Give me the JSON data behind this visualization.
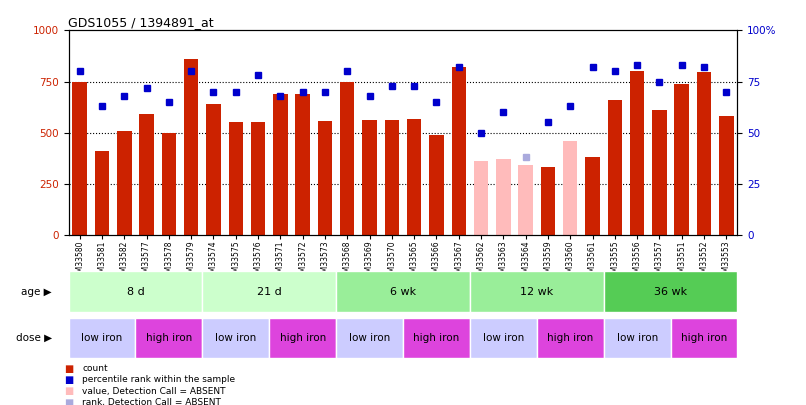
{
  "title": "GDS1055 / 1394891_at",
  "samples": [
    "GSM33580",
    "GSM33581",
    "GSM33582",
    "GSM33577",
    "GSM33578",
    "GSM33579",
    "GSM33574",
    "GSM33575",
    "GSM33576",
    "GSM33571",
    "GSM33572",
    "GSM33573",
    "GSM33568",
    "GSM33569",
    "GSM33570",
    "GSM33565",
    "GSM33566",
    "GSM33567",
    "GSM33562",
    "GSM33563",
    "GSM33564",
    "GSM33559",
    "GSM33560",
    "GSM33561",
    "GSM33555",
    "GSM33556",
    "GSM33557",
    "GSM33551",
    "GSM33552",
    "GSM33553"
  ],
  "bar_values": [
    750,
    410,
    510,
    590,
    500,
    860,
    640,
    550,
    550,
    690,
    690,
    555,
    750,
    560,
    560,
    565,
    490,
    820,
    360,
    370,
    340,
    330,
    460,
    380,
    660,
    800,
    610,
    740,
    795,
    580
  ],
  "bar_absent": [
    false,
    false,
    false,
    false,
    false,
    false,
    false,
    false,
    false,
    false,
    false,
    false,
    false,
    false,
    false,
    false,
    false,
    false,
    true,
    true,
    true,
    false,
    true,
    false,
    false,
    false,
    false,
    false,
    false,
    false
  ],
  "rank_values": [
    80,
    63,
    68,
    72,
    65,
    80,
    70,
    70,
    78,
    68,
    70,
    70,
    80,
    68,
    73,
    73,
    65,
    82,
    50,
    60,
    38,
    55,
    63,
    82,
    80,
    83,
    75,
    83,
    82,
    70
  ],
  "rank_absent": [
    false,
    false,
    false,
    false,
    false,
    false,
    false,
    false,
    false,
    false,
    false,
    false,
    false,
    false,
    false,
    false,
    false,
    false,
    false,
    false,
    true,
    false,
    false,
    false,
    false,
    false,
    false,
    false,
    false,
    false
  ],
  "age_groups": [
    {
      "label": "8 d",
      "start": 0,
      "end": 6
    },
    {
      "label": "21 d",
      "start": 6,
      "end": 12
    },
    {
      "label": "6 wk",
      "start": 12,
      "end": 18
    },
    {
      "label": "12 wk",
      "start": 18,
      "end": 24
    },
    {
      "label": "36 wk",
      "start": 24,
      "end": 30
    }
  ],
  "age_colors": [
    "#ccffcc",
    "#ccffcc",
    "#99ee99",
    "#99ee99",
    "#55cc55"
  ],
  "dose_groups": [
    {
      "label": "low iron",
      "start": 0,
      "end": 3
    },
    {
      "label": "high iron",
      "start": 3,
      "end": 6
    },
    {
      "label": "low iron",
      "start": 6,
      "end": 9
    },
    {
      "label": "high iron",
      "start": 9,
      "end": 12
    },
    {
      "label": "low iron",
      "start": 12,
      "end": 15
    },
    {
      "label": "high iron",
      "start": 15,
      "end": 18
    },
    {
      "label": "low iron",
      "start": 18,
      "end": 21
    },
    {
      "label": "high iron",
      "start": 21,
      "end": 24
    },
    {
      "label": "low iron",
      "start": 24,
      "end": 27
    },
    {
      "label": "high iron",
      "start": 27,
      "end": 30
    }
  ],
  "dose_colors": {
    "low iron": "#ccccff",
    "high iron": "#dd44dd"
  },
  "bar_color_present": "#cc2200",
  "bar_color_absent": "#ffbbbb",
  "rank_color_present": "#0000cc",
  "rank_color_absent": "#aaaadd",
  "ylim_left": [
    0,
    1000
  ],
  "ylim_right": [
    0,
    100
  ],
  "yticks_left": [
    0,
    250,
    500,
    750,
    1000
  ],
  "yticks_right": [
    0,
    25,
    50,
    75,
    100
  ],
  "background_color": "#ffffff"
}
